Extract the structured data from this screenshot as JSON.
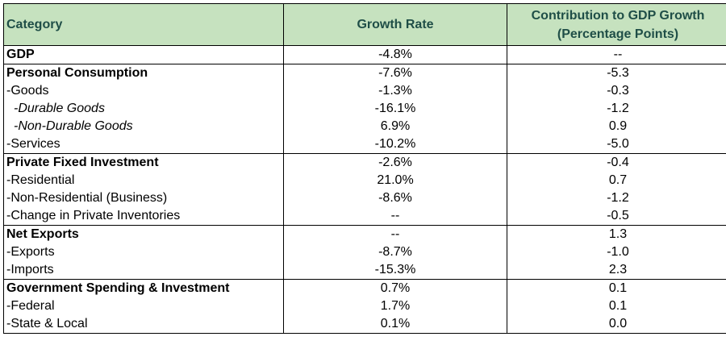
{
  "headers": {
    "category": "Category",
    "growth": "Growth Rate",
    "contribution": "Contribution to GDP Growth (Percentage Points)"
  },
  "rows": [
    {
      "category": "GDP",
      "growth": "-4.8%",
      "contribution": "--",
      "style": "bold"
    },
    {
      "category": "Personal Consumption",
      "growth": "-7.6%",
      "contribution": "-5.3",
      "style": "bold"
    },
    {
      "category": "-Goods",
      "growth": "-1.3%",
      "contribution": "-0.3",
      "style": "normal"
    },
    {
      "category": "-Durable Goods",
      "growth": "-16.1%",
      "contribution": "-1.2",
      "style": "italic"
    },
    {
      "category": "-Non-Durable Goods",
      "growth": "6.9%",
      "contribution": "0.9",
      "style": "italic"
    },
    {
      "category": "-Services",
      "growth": "-10.2%",
      "contribution": "-5.0",
      "style": "normal"
    },
    {
      "category": "Private Fixed Investment",
      "growth": "-2.6%",
      "contribution": "-0.4",
      "style": "bold"
    },
    {
      "category": "-Residential",
      "growth": "21.0%",
      "contribution": "0.7",
      "style": "normal"
    },
    {
      "category": "-Non-Residential (Business)",
      "growth": "-8.6%",
      "contribution": "-1.2",
      "style": "normal"
    },
    {
      "category": "-Change in Private Inventories",
      "growth": "--",
      "contribution": "-0.5",
      "style": "normal"
    },
    {
      "category": "Net Exports",
      "growth": "--",
      "contribution": "1.3",
      "style": "bold"
    },
    {
      "category": "-Exports",
      "growth": "-8.7%",
      "contribution": "-1.0",
      "style": "normal"
    },
    {
      "category": "-Imports",
      "growth": "-15.3%",
      "contribution": "2.3",
      "style": "normal"
    },
    {
      "category": "Government Spending & Investment",
      "growth": "0.7%",
      "contribution": "0.1",
      "style": "bold"
    },
    {
      "category": "-Federal",
      "growth": "1.7%",
      "contribution": "0.1",
      "style": "normal"
    },
    {
      "category": "-State & Local",
      "growth": "0.1%",
      "contribution": "0.0",
      "style": "normal"
    }
  ],
  "colors": {
    "header_bg": "#c6e2bf",
    "header_text": "#1f4e47"
  }
}
